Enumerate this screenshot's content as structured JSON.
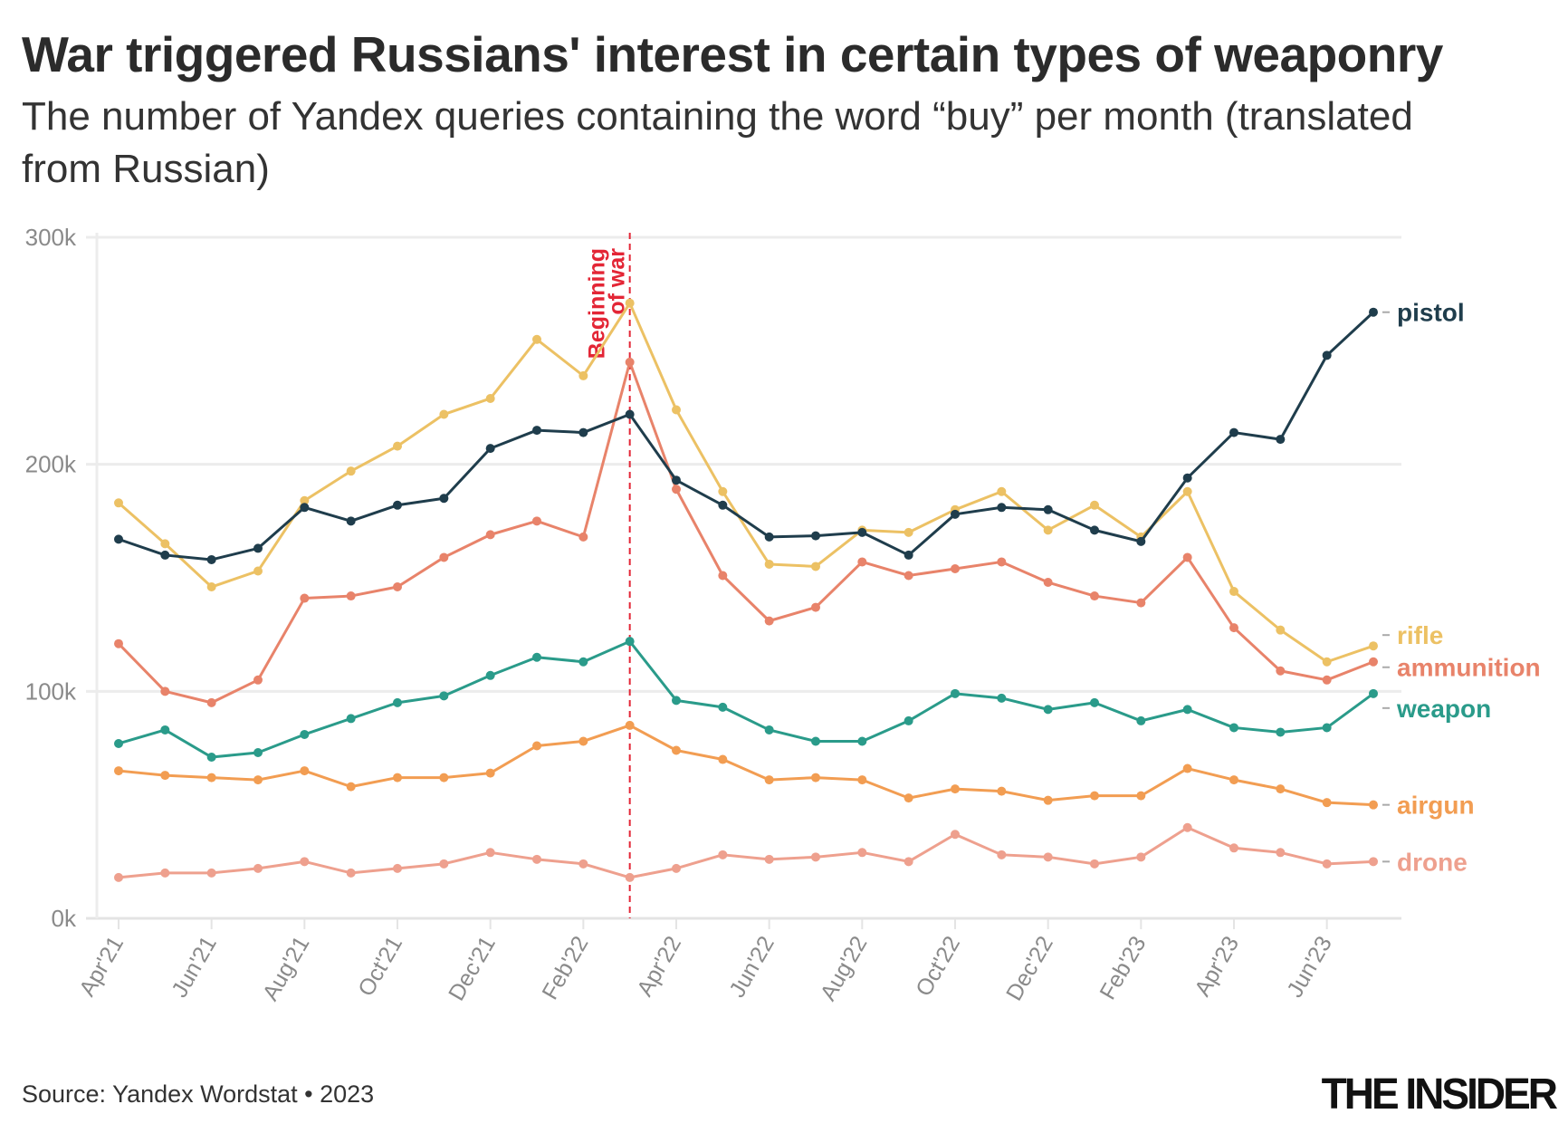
{
  "chart_data": {
    "type": "line",
    "title": "War triggered Russians' interest in certain types of weaponry",
    "subtitle": "The number of Yandex queries containing the word “buy” per month (translated from Russian)",
    "xlabel": "",
    "ylabel": "",
    "x": [
      "Apr'21",
      "May'21",
      "Jun'21",
      "Jul'21",
      "Aug'21",
      "Sep'21",
      "Oct'21",
      "Nov'21",
      "Dec'21",
      "Jan'22",
      "Feb'22",
      "Mar'22",
      "Apr'22",
      "May'22",
      "Jun'22",
      "Jul'22",
      "Aug'22",
      "Sep'22",
      "Oct'22",
      "Nov'22",
      "Dec'22",
      "Jan'23",
      "Feb'23",
      "Mar'23",
      "Apr'23",
      "May'23",
      "Jun'23",
      "Jul'23"
    ],
    "x_tick_labels": [
      "Apr'21",
      "Jun'21",
      "Aug'21",
      "Oct'21",
      "Dec'21",
      "Feb'22",
      "Apr'22",
      "Jun'22",
      "Aug'22",
      "Oct'22",
      "Dec'22",
      "Feb'23",
      "Apr'23",
      "Jun'23"
    ],
    "y_tick_labels": [
      "0k",
      "100k",
      "200k",
      "300k"
    ],
    "ylim": [
      0,
      300000
    ],
    "grid": true,
    "legend": "direct labels at line ends (right)",
    "annotation": {
      "label_line1": "Beginning",
      "label_line2": "of war",
      "x": "Mar'22",
      "color": "#e32636"
    },
    "series": [
      {
        "name": "pistol",
        "color": "#1f3d4c",
        "values": [
          167000,
          160000,
          158000,
          163000,
          181000,
          175000,
          182000,
          185000,
          207000,
          215000,
          214000,
          222000,
          193000,
          182000,
          168000,
          168500,
          170000,
          160000,
          178000,
          181000,
          180000,
          171000,
          166000,
          194000,
          214000,
          211000,
          248000,
          267000
        ]
      },
      {
        "name": "rifle",
        "color": "#ecc164",
        "values": [
          183000,
          165000,
          146000,
          153000,
          184000,
          197000,
          208000,
          222000,
          229000,
          255000,
          239000,
          271000,
          224000,
          188000,
          156000,
          155000,
          171000,
          170000,
          180000,
          188000,
          171000,
          182000,
          168000,
          188000,
          144000,
          127000,
          113000,
          120000
        ]
      },
      {
        "name": "ammunition",
        "color": "#e8836a",
        "values": [
          121000,
          100000,
          95000,
          105000,
          141000,
          142000,
          146000,
          159000,
          169000,
          175000,
          168000,
          245000,
          189000,
          151000,
          131000,
          137000,
          157000,
          151000,
          154000,
          157000,
          148000,
          142000,
          139000,
          159000,
          128000,
          109000,
          105000,
          113000
        ]
      },
      {
        "name": "weapon",
        "color": "#2a9b8a",
        "values": [
          77000,
          83000,
          71000,
          73000,
          81000,
          88000,
          95000,
          98000,
          107000,
          115000,
          113000,
          122000,
          96000,
          93000,
          83000,
          78000,
          78000,
          87000,
          99000,
          97000,
          92000,
          95000,
          87000,
          92000,
          84000,
          82000,
          84000,
          99000
        ]
      },
      {
        "name": "airgun",
        "color": "#f29d52",
        "values": [
          65000,
          63000,
          62000,
          61000,
          65000,
          58000,
          62000,
          62000,
          64000,
          76000,
          78000,
          85000,
          74000,
          70000,
          61000,
          62000,
          61000,
          53000,
          57000,
          56000,
          52000,
          54000,
          54000,
          66000,
          61000,
          57000,
          51000,
          50000
        ]
      },
      {
        "name": "drone",
        "color": "#eea08e",
        "values": [
          18000,
          20000,
          20000,
          22000,
          25000,
          20000,
          22000,
          24000,
          29000,
          26000,
          24000,
          18000,
          22000,
          28000,
          26000,
          27000,
          29000,
          25000,
          37000,
          28000,
          27000,
          24000,
          27000,
          40000,
          31000,
          29000,
          24000,
          25000
        ]
      }
    ]
  },
  "footer": {
    "source": "Source: Yandex Wordstat • 2023",
    "logo": "THE INSIDER"
  }
}
